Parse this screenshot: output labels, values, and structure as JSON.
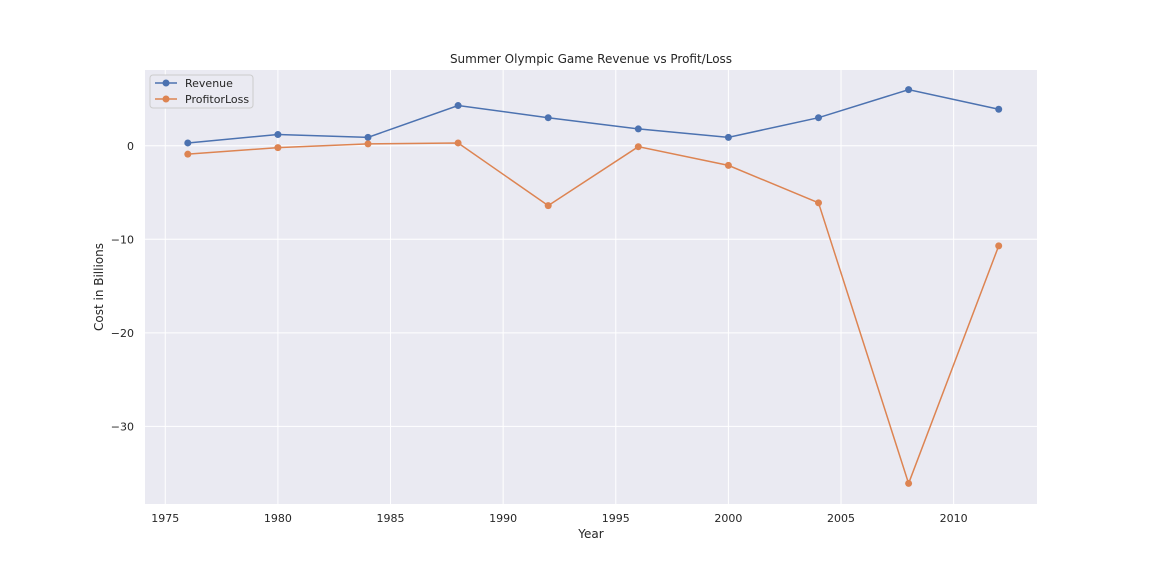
{
  "chart_data": {
    "type": "line",
    "title": "Summer Olympic Game Revenue vs Profit/Loss",
    "xlabel": "Year",
    "ylabel": "Cost in Billions",
    "x": [
      1976,
      1980,
      1984,
      1988,
      1992,
      1996,
      2000,
      2004,
      2008,
      2012
    ],
    "xlim": [
      1974.1,
      2013.7
    ],
    "ylim": [
      -38.3,
      8.1
    ],
    "xticks": [
      1975,
      1980,
      1985,
      1990,
      1995,
      2000,
      2005,
      2010
    ],
    "yticks": [
      0,
      -10,
      -20,
      -30
    ],
    "ytick_labels": [
      "0",
      "−10",
      "−20",
      "−30"
    ],
    "grid": true,
    "legend_position": "top-left",
    "series": [
      {
        "name": "Revenue",
        "color": "#4c72b0",
        "values": [
          0.3,
          1.2,
          0.9,
          4.3,
          3.0,
          1.8,
          0.9,
          3.0,
          6.0,
          3.9
        ]
      },
      {
        "name": "ProfitorLoss",
        "color": "#dd8452",
        "values": [
          -0.9,
          -0.2,
          0.2,
          0.3,
          -6.4,
          -0.1,
          -2.1,
          -6.1,
          -36.1,
          -10.7
        ]
      }
    ]
  }
}
